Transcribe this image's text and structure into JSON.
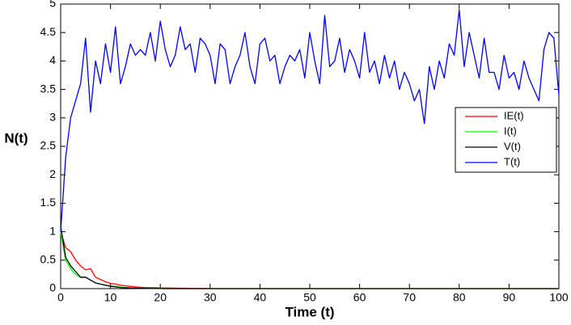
{
  "chart_data": {
    "type": "line",
    "xlabel": "Time (t)",
    "ylabel": "N(t)",
    "x": [
      0,
      1,
      2,
      3,
      4,
      5,
      6,
      7,
      8,
      9,
      10,
      11,
      12,
      13,
      14,
      15,
      16,
      17,
      18,
      19,
      20,
      21,
      22,
      23,
      24,
      25,
      26,
      27,
      28,
      29,
      30,
      31,
      32,
      33,
      34,
      35,
      36,
      37,
      38,
      39,
      40,
      41,
      42,
      43,
      44,
      45,
      46,
      47,
      48,
      49,
      50,
      51,
      52,
      53,
      54,
      55,
      56,
      57,
      58,
      59,
      60,
      61,
      62,
      63,
      64,
      65,
      66,
      67,
      68,
      69,
      70,
      71,
      72,
      73,
      74,
      75,
      76,
      77,
      78,
      79,
      80,
      81,
      82,
      83,
      84,
      85,
      86,
      87,
      88,
      89,
      90,
      91,
      92,
      93,
      94,
      95,
      96,
      97,
      98,
      99,
      100
    ],
    "series": [
      {
        "name": "IE(t)",
        "color": "#ff0000",
        "values": [
          1.0,
          0.72,
          0.65,
          0.5,
          0.4,
          0.33,
          0.35,
          0.2,
          0.16,
          0.12,
          0.09,
          0.08,
          0.06,
          0.05,
          0.04,
          0.03,
          0.025,
          0.02,
          0.018,
          0.015,
          0.012,
          0.01,
          0.01,
          0.008,
          0.007,
          0.006,
          0.005,
          0.004,
          0.003,
          0.003,
          0.002,
          0,
          0,
          0,
          0,
          0,
          0,
          0,
          0,
          0,
          0,
          0,
          0,
          0,
          0,
          0,
          0,
          0,
          0,
          0,
          0,
          0,
          0,
          0,
          0,
          0,
          0,
          0,
          0,
          0,
          0,
          0,
          0,
          0,
          0,
          0,
          0,
          0,
          0,
          0,
          0,
          0,
          0,
          0,
          0,
          0,
          0,
          0,
          0,
          0,
          0,
          0,
          0,
          0,
          0,
          0,
          0,
          0,
          0,
          0,
          0,
          0,
          0,
          0,
          0,
          0,
          0,
          0,
          0,
          0,
          0
        ]
      },
      {
        "name": "I(t)",
        "color": "#00ff00",
        "values": [
          1.0,
          0.5,
          0.35,
          0.25,
          0.2,
          0.2,
          0.15,
          0.1,
          0.08,
          0.06,
          0.05,
          0.04,
          0.03,
          0.02,
          0.015,
          0.01,
          0.008,
          0.006,
          0.005,
          0.004,
          0.003,
          0,
          0,
          0,
          0,
          0,
          0,
          0,
          0,
          0,
          0,
          0,
          0,
          0,
          0,
          0,
          0,
          0,
          0,
          0,
          0,
          0,
          0,
          0,
          0,
          0,
          0,
          0,
          0,
          0,
          0,
          0,
          0,
          0,
          0,
          0,
          0,
          0,
          0,
          0,
          0,
          0,
          0,
          0,
          0,
          0,
          0,
          0,
          0,
          0,
          0,
          0,
          0,
          0,
          0,
          0,
          0,
          0,
          0,
          0,
          0,
          0,
          0,
          0,
          0,
          0,
          0,
          0,
          0,
          0,
          0,
          0,
          0,
          0,
          0,
          0,
          0,
          0,
          0,
          0,
          0
        ]
      },
      {
        "name": "V(t)",
        "color": "#000000",
        "values": [
          1.1,
          0.55,
          0.4,
          0.3,
          0.2,
          0.2,
          0.15,
          0.1,
          0.08,
          0.06,
          0.04,
          0.03,
          0.02,
          0.015,
          0.01,
          0.008,
          0.006,
          0.005,
          0.004,
          0.003,
          0.002,
          0,
          0,
          0,
          0,
          0,
          0,
          0,
          0,
          0,
          0,
          0,
          0,
          0,
          0,
          0,
          0,
          0,
          0,
          0,
          0,
          0,
          0,
          0,
          0,
          0,
          0,
          0,
          0,
          0,
          0,
          0,
          0,
          0,
          0,
          0,
          0,
          0,
          0,
          0,
          0,
          0,
          0,
          0,
          0,
          0,
          0,
          0,
          0,
          0,
          0,
          0,
          0,
          0,
          0,
          0,
          0,
          0,
          0,
          0,
          0,
          0,
          0,
          0,
          0,
          0,
          0,
          0,
          0,
          0,
          0,
          0,
          0,
          0,
          0,
          0,
          0,
          0,
          0,
          0,
          0
        ]
      },
      {
        "name": "T(t)",
        "color": "#0000ff",
        "values": [
          1.0,
          2.3,
          3.0,
          3.3,
          3.6,
          4.4,
          3.1,
          4.0,
          3.6,
          4.3,
          3.8,
          4.6,
          3.6,
          3.9,
          4.3,
          4.1,
          4.2,
          4.1,
          4.5,
          4.0,
          4.7,
          4.2,
          3.9,
          4.1,
          4.6,
          4.2,
          4.3,
          3.8,
          4.4,
          4.3,
          4.1,
          3.6,
          4.3,
          4.2,
          3.6,
          3.9,
          4.1,
          4.5,
          3.9,
          3.6,
          4.3,
          4.4,
          4.0,
          4.1,
          3.6,
          3.9,
          4.1,
          4.0,
          4.2,
          3.7,
          4.5,
          4.0,
          3.6,
          4.8,
          3.9,
          4.0,
          4.4,
          3.8,
          4.2,
          4.0,
          3.7,
          4.5,
          3.8,
          4.0,
          3.6,
          4.1,
          3.7,
          4.0,
          3.5,
          3.8,
          3.6,
          3.3,
          3.5,
          2.9,
          3.9,
          3.5,
          4.0,
          3.7,
          4.3,
          4.1,
          4.9,
          3.9,
          4.5,
          4.1,
          3.7,
          4.4,
          3.8,
          3.8,
          3.5,
          4.1,
          3.7,
          3.8,
          3.5,
          4.0,
          3.7,
          3.5,
          3.3,
          4.2,
          4.5,
          4.4,
          3.4
        ]
      }
    ],
    "xlim": [
      0,
      100
    ],
    "xticks": [
      0,
      10,
      20,
      30,
      40,
      50,
      60,
      70,
      80,
      90,
      100
    ],
    "ylim": [
      0,
      5
    ],
    "yticks": [
      0,
      0.5,
      1,
      1.5,
      2,
      2.5,
      3,
      3.5,
      4,
      4.5,
      5
    ],
    "legend": "right",
    "grid": false
  }
}
